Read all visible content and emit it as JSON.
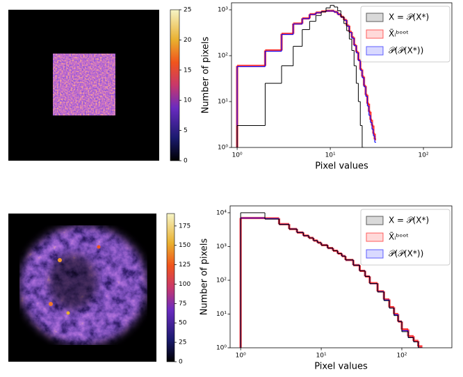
{
  "chart_data": [
    {
      "type": "image",
      "clim": [
        0,
        25
      ],
      "cticks": [
        0,
        5,
        10,
        15,
        20,
        25
      ]
    },
    {
      "type": "histogram",
      "xlabel": "Pixel values",
      "ylabel": "Number of pixels",
      "log_x": true,
      "log_y": true,
      "xlim": [
        0.87,
        202
      ],
      "ylim": [
        1,
        1420
      ],
      "xticks": [
        {
          "value": 1,
          "label": "10⁰"
        },
        {
          "value": 10,
          "label": "10¹"
        },
        {
          "value": 100,
          "label": "10²"
        }
      ],
      "yticks": [
        {
          "value": 1,
          "label": "10⁰"
        },
        {
          "value": 10,
          "label": "10¹"
        },
        {
          "value": 100,
          "label": "10²"
        },
        {
          "value": 1000,
          "label": "10³"
        }
      ],
      "legend": "upper right",
      "bins": [
        1,
        2,
        3,
        4,
        5,
        6,
        7,
        8,
        9,
        10,
        11,
        12,
        13,
        14,
        15,
        16,
        17,
        18,
        19,
        20,
        21,
        22,
        23,
        24,
        25,
        26,
        27,
        28,
        29,
        30,
        31
      ],
      "series": [
        {
          "name": "X = 𝒫(X*)",
          "color": "#000000",
          "values": [
            3,
            25,
            60,
            160,
            370,
            560,
            750,
            900,
            1100,
            1250,
            1150,
            950,
            700,
            500,
            350,
            230,
            130,
            60,
            25,
            10,
            3,
            1,
            null,
            null,
            null,
            null,
            null,
            null,
            null,
            null
          ]
        },
        {
          "name": "X̃ᵢᵇᵒᵒᵗ",
          "color": "#ff0000",
          "values": [
            60,
            130,
            300,
            500,
            650,
            800,
            870,
            920,
            950,
            950,
            900,
            800,
            700,
            600,
            450,
            330,
            250,
            170,
            120,
            80,
            50,
            35,
            22,
            14,
            9,
            6,
            4,
            3,
            2,
            1.5
          ]
        },
        {
          "name": "𝒫(𝒫(X*))",
          "color": "#0000ff",
          "values": [
            58,
            125,
            290,
            490,
            640,
            790,
            860,
            910,
            940,
            940,
            890,
            790,
            690,
            590,
            440,
            320,
            240,
            165,
            115,
            78,
            48,
            33,
            21,
            13,
            8,
            5,
            3.5,
            2.5,
            1.8,
            1.3
          ]
        }
      ]
    },
    {
      "type": "image",
      "clim": [
        0,
        191
      ],
      "cticks": [
        0,
        25,
        50,
        75,
        100,
        125,
        150,
        175
      ]
    },
    {
      "type": "histogram",
      "xlabel": "Pixel values",
      "ylabel": "Number of pixels",
      "log_x": true,
      "log_y": true,
      "xlim": [
        0.74,
        418
      ],
      "ylim": [
        1,
        16000
      ],
      "xticks": [
        {
          "value": 1,
          "label": "10⁰"
        },
        {
          "value": 10,
          "label": "10¹"
        },
        {
          "value": 100,
          "label": "10²"
        }
      ],
      "yticks": [
        {
          "value": 1,
          "label": "10⁰"
        },
        {
          "value": 10,
          "label": "10¹"
        },
        {
          "value": 100,
          "label": "10²"
        },
        {
          "value": 1000,
          "label": "10³"
        },
        {
          "value": 10000,
          "label": "10⁴"
        }
      ],
      "legend": "upper right",
      "bins": [
        1,
        2,
        3,
        4,
        5,
        6,
        7,
        8,
        9,
        10,
        12,
        14,
        16,
        18,
        20,
        25,
        30,
        35,
        40,
        50,
        60,
        70,
        80,
        90,
        100,
        120,
        140,
        160,
        180
      ],
      "series": [
        {
          "name": "X = 𝒫(X*)",
          "color": "#000000",
          "values": [
            10000,
            6500,
            4500,
            3300,
            2600,
            2100,
            1800,
            1500,
            1300,
            1100,
            900,
            750,
            620,
            520,
            400,
            280,
            190,
            130,
            80,
            45,
            25,
            15,
            9,
            6,
            3,
            2,
            1.5,
            1
          ]
        },
        {
          "name": "X̃ᵢᵇᵒᵒᵗ",
          "color": "#ff0000",
          "values": [
            7000,
            6800,
            4600,
            3300,
            2600,
            2100,
            1800,
            1500,
            1300,
            1100,
            900,
            750,
            620,
            520,
            400,
            280,
            190,
            130,
            82,
            47,
            27,
            16,
            10,
            6,
            3.5,
            2.2,
            1.6,
            1.1
          ]
        },
        {
          "name": "𝒫(𝒫(X*))",
          "color": "#0000ff",
          "values": [
            7000,
            6700,
            4550,
            3300,
            2600,
            2100,
            1800,
            1500,
            1300,
            1100,
            900,
            750,
            620,
            520,
            400,
            280,
            190,
            130,
            80,
            46,
            26,
            15,
            9.5,
            6,
            3.2,
            2,
            1.5,
            1
          ]
        }
      ]
    }
  ]
}
